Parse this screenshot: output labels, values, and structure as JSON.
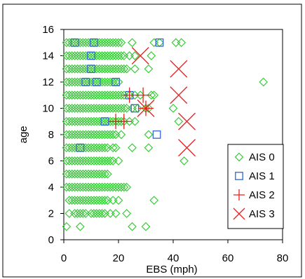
{
  "chart_data": {
    "type": "scatter",
    "title": "",
    "xlabel": "EBS (mph)",
    "ylabel": "age",
    "xlim": [
      0,
      80
    ],
    "ylim": [
      0,
      16
    ],
    "xticks": [
      "0",
      "20",
      "40",
      "60",
      "80"
    ],
    "yticks": [
      "0",
      "2",
      "4",
      "6",
      "8",
      "10",
      "12",
      "14",
      "16"
    ],
    "grid": false,
    "legend_position": "bottom-right",
    "series": [
      {
        "name": "AIS 0",
        "marker": "diamond",
        "color": "#33cc33",
        "points": [
          [
            1,
            1
          ],
          [
            6,
            1
          ],
          [
            25,
            1
          ],
          [
            30,
            1
          ],
          [
            2,
            2
          ],
          [
            4,
            2
          ],
          [
            5,
            2
          ],
          [
            6,
            2
          ],
          [
            7,
            2
          ],
          [
            8,
            2
          ],
          [
            10,
            2
          ],
          [
            11,
            2
          ],
          [
            12,
            2
          ],
          [
            13,
            2
          ],
          [
            14,
            2
          ],
          [
            15,
            2
          ],
          [
            17,
            2
          ],
          [
            19,
            2
          ],
          [
            23,
            2
          ],
          [
            2,
            3
          ],
          [
            3,
            3
          ],
          [
            4,
            3
          ],
          [
            5,
            3
          ],
          [
            6,
            3
          ],
          [
            7,
            3
          ],
          [
            8,
            3
          ],
          [
            9,
            3
          ],
          [
            10,
            3
          ],
          [
            11,
            3
          ],
          [
            12,
            3
          ],
          [
            13,
            3
          ],
          [
            14,
            3
          ],
          [
            15,
            3
          ],
          [
            16,
            3
          ],
          [
            18,
            3
          ],
          [
            20,
            3
          ],
          [
            33,
            3
          ],
          [
            1,
            4
          ],
          [
            2,
            4
          ],
          [
            3,
            4
          ],
          [
            4,
            4
          ],
          [
            5,
            4
          ],
          [
            6,
            4
          ],
          [
            7,
            4
          ],
          [
            8,
            4
          ],
          [
            9,
            4
          ],
          [
            10,
            4
          ],
          [
            11,
            4
          ],
          [
            12,
            4
          ],
          [
            13,
            4
          ],
          [
            14,
            4
          ],
          [
            15,
            4
          ],
          [
            16,
            4
          ],
          [
            17,
            4
          ],
          [
            18,
            4
          ],
          [
            19,
            4
          ],
          [
            20,
            4
          ],
          [
            21,
            4
          ],
          [
            22,
            4
          ],
          [
            23,
            4
          ],
          [
            1,
            5
          ],
          [
            2,
            5
          ],
          [
            3,
            5
          ],
          [
            4,
            5
          ],
          [
            5,
            5
          ],
          [
            6,
            5
          ],
          [
            7,
            5
          ],
          [
            8,
            5
          ],
          [
            9,
            5
          ],
          [
            10,
            5
          ],
          [
            11,
            5
          ],
          [
            12,
            5
          ],
          [
            13,
            5
          ],
          [
            14,
            5
          ],
          [
            15,
            5
          ],
          [
            16,
            5
          ],
          [
            1,
            6
          ],
          [
            2,
            6
          ],
          [
            3,
            6
          ],
          [
            4,
            6
          ],
          [
            5,
            6
          ],
          [
            6,
            6
          ],
          [
            7,
            6
          ],
          [
            8,
            6
          ],
          [
            9,
            6
          ],
          [
            10,
            6
          ],
          [
            11,
            6
          ],
          [
            12,
            6
          ],
          [
            13,
            6
          ],
          [
            14,
            6
          ],
          [
            15,
            6
          ],
          [
            16,
            6
          ],
          [
            17,
            6
          ],
          [
            18,
            6
          ],
          [
            20,
            6
          ],
          [
            44,
            6
          ],
          [
            1,
            7
          ],
          [
            2,
            7
          ],
          [
            3,
            7
          ],
          [
            4,
            7
          ],
          [
            5,
            7
          ],
          [
            6,
            7
          ],
          [
            7,
            7
          ],
          [
            8,
            7
          ],
          [
            9,
            7
          ],
          [
            10,
            7
          ],
          [
            11,
            7
          ],
          [
            12,
            7
          ],
          [
            13,
            7
          ],
          [
            14,
            7
          ],
          [
            15,
            7
          ],
          [
            16,
            7
          ],
          [
            18,
            7
          ],
          [
            19,
            7
          ],
          [
            25,
            7
          ],
          [
            31,
            7
          ],
          [
            1,
            8
          ],
          [
            2,
            8
          ],
          [
            3,
            8
          ],
          [
            4,
            8
          ],
          [
            5,
            8
          ],
          [
            6,
            8
          ],
          [
            7,
            8
          ],
          [
            8,
            8
          ],
          [
            9,
            8
          ],
          [
            10,
            8
          ],
          [
            11,
            8
          ],
          [
            12,
            8
          ],
          [
            13,
            8
          ],
          [
            14,
            8
          ],
          [
            15,
            8
          ],
          [
            16,
            8
          ],
          [
            17,
            8
          ],
          [
            18,
            8
          ],
          [
            19,
            8
          ],
          [
            21,
            8
          ],
          [
            31,
            8
          ],
          [
            1,
            9
          ],
          [
            2,
            9
          ],
          [
            3,
            9
          ],
          [
            4,
            9
          ],
          [
            5,
            9
          ],
          [
            6,
            9
          ],
          [
            7,
            9
          ],
          [
            8,
            9
          ],
          [
            9,
            9
          ],
          [
            10,
            9
          ],
          [
            11,
            9
          ],
          [
            12,
            9
          ],
          [
            13,
            9
          ],
          [
            14,
            9
          ],
          [
            15,
            9
          ],
          [
            16,
            9
          ],
          [
            17,
            9
          ],
          [
            18,
            9
          ],
          [
            19,
            9
          ],
          [
            20,
            9
          ],
          [
            21,
            9
          ],
          [
            22,
            9
          ],
          [
            24,
            9
          ],
          [
            26,
            9
          ],
          [
            42,
            9
          ],
          [
            1,
            10
          ],
          [
            2,
            10
          ],
          [
            3,
            10
          ],
          [
            4,
            10
          ],
          [
            5,
            10
          ],
          [
            6,
            10
          ],
          [
            7,
            10
          ],
          [
            8,
            10
          ],
          [
            9,
            10
          ],
          [
            10,
            10
          ],
          [
            11,
            10
          ],
          [
            12,
            10
          ],
          [
            13,
            10
          ],
          [
            14,
            10
          ],
          [
            15,
            10
          ],
          [
            16,
            10
          ],
          [
            17,
            10
          ],
          [
            18,
            10
          ],
          [
            19,
            10
          ],
          [
            20,
            10
          ],
          [
            21,
            10
          ],
          [
            22,
            10
          ],
          [
            23,
            10
          ],
          [
            25,
            10
          ],
          [
            27,
            10
          ],
          [
            30,
            10
          ],
          [
            31,
            10
          ],
          [
            40,
            10
          ],
          [
            1,
            11
          ],
          [
            2,
            11
          ],
          [
            3,
            11
          ],
          [
            4,
            11
          ],
          [
            5,
            11
          ],
          [
            6,
            11
          ],
          [
            7,
            11
          ],
          [
            8,
            11
          ],
          [
            9,
            11
          ],
          [
            10,
            11
          ],
          [
            11,
            11
          ],
          [
            12,
            11
          ],
          [
            13,
            11
          ],
          [
            14,
            11
          ],
          [
            15,
            11
          ],
          [
            16,
            11
          ],
          [
            17,
            11
          ],
          [
            18,
            11
          ],
          [
            19,
            11
          ],
          [
            20,
            11
          ],
          [
            21,
            11
          ],
          [
            22,
            11
          ],
          [
            24,
            11
          ],
          [
            26,
            11
          ],
          [
            28,
            11
          ],
          [
            32,
            11
          ],
          [
            33,
            11
          ],
          [
            1,
            12
          ],
          [
            2,
            12
          ],
          [
            3,
            12
          ],
          [
            4,
            12
          ],
          [
            5,
            12
          ],
          [
            6,
            12
          ],
          [
            7,
            12
          ],
          [
            8,
            12
          ],
          [
            9,
            12
          ],
          [
            10,
            12
          ],
          [
            11,
            12
          ],
          [
            12,
            12
          ],
          [
            13,
            12
          ],
          [
            14,
            12
          ],
          [
            15,
            12
          ],
          [
            16,
            12
          ],
          [
            17,
            12
          ],
          [
            18,
            12
          ],
          [
            19,
            12
          ],
          [
            20,
            12
          ],
          [
            73,
            12
          ],
          [
            1,
            13
          ],
          [
            2,
            13
          ],
          [
            3,
            13
          ],
          [
            4,
            13
          ],
          [
            5,
            13
          ],
          [
            6,
            13
          ],
          [
            7,
            13
          ],
          [
            8,
            13
          ],
          [
            9,
            13
          ],
          [
            10,
            13
          ],
          [
            11,
            13
          ],
          [
            12,
            13
          ],
          [
            13,
            13
          ],
          [
            14,
            13
          ],
          [
            15,
            13
          ],
          [
            16,
            13
          ],
          [
            17,
            13
          ],
          [
            18,
            13
          ],
          [
            19,
            13
          ],
          [
            20,
            13
          ],
          [
            21,
            13
          ],
          [
            22,
            13
          ],
          [
            23,
            13
          ],
          [
            26,
            13
          ],
          [
            31,
            13
          ],
          [
            1,
            14
          ],
          [
            2,
            14
          ],
          [
            3,
            14
          ],
          [
            4,
            14
          ],
          [
            5,
            14
          ],
          [
            6,
            14
          ],
          [
            7,
            14
          ],
          [
            8,
            14
          ],
          [
            9,
            14
          ],
          [
            10,
            14
          ],
          [
            11,
            14
          ],
          [
            12,
            14
          ],
          [
            13,
            14
          ],
          [
            14,
            14
          ],
          [
            15,
            14
          ],
          [
            16,
            14
          ],
          [
            17,
            14
          ],
          [
            18,
            14
          ],
          [
            19,
            14
          ],
          [
            20,
            14
          ],
          [
            21,
            14
          ],
          [
            22,
            14
          ],
          [
            24,
            14
          ],
          [
            26,
            14
          ],
          [
            32,
            14
          ],
          [
            1,
            15
          ],
          [
            2,
            15
          ],
          [
            3,
            15
          ],
          [
            4,
            15
          ],
          [
            5,
            15
          ],
          [
            6,
            15
          ],
          [
            7,
            15
          ],
          [
            8,
            15
          ],
          [
            9,
            15
          ],
          [
            10,
            15
          ],
          [
            11,
            15
          ],
          [
            12,
            15
          ],
          [
            13,
            15
          ],
          [
            14,
            15
          ],
          [
            15,
            15
          ],
          [
            16,
            15
          ],
          [
            17,
            15
          ],
          [
            18,
            15
          ],
          [
            19,
            15
          ],
          [
            20,
            15
          ],
          [
            21,
            15
          ],
          [
            25,
            15
          ],
          [
            33,
            15
          ],
          [
            35,
            15
          ],
          [
            41,
            15
          ],
          [
            43,
            15
          ]
        ]
      },
      {
        "name": "AIS 1",
        "marker": "square",
        "color": "#3366cc",
        "points": [
          [
            4,
            15
          ],
          [
            11,
            15
          ],
          [
            35,
            15
          ],
          [
            10,
            14
          ],
          [
            10,
            13
          ],
          [
            8,
            12
          ],
          [
            12,
            12
          ],
          [
            19,
            12
          ],
          [
            24,
            11
          ],
          [
            26,
            10
          ],
          [
            15,
            9
          ],
          [
            34,
            8
          ],
          [
            6,
            7
          ]
        ]
      },
      {
        "name": "AIS 2",
        "marker": "plus",
        "color": "#e82020",
        "points": [
          [
            24,
            11
          ],
          [
            29,
            11
          ],
          [
            30,
            10
          ],
          [
            19,
            9
          ],
          [
            22,
            9
          ]
        ]
      },
      {
        "name": "AIS 3",
        "marker": "x",
        "color": "#e82020",
        "points": [
          [
            28,
            14
          ],
          [
            42,
            13
          ],
          [
            42,
            11
          ],
          [
            30,
            10
          ],
          [
            45,
            9
          ],
          [
            45,
            7
          ]
        ]
      }
    ]
  }
}
